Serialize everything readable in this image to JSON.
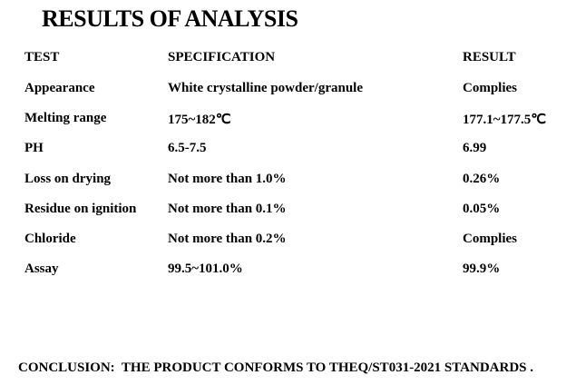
{
  "header": {
    "title": "RESULTS OF ANALYSIS"
  },
  "table": {
    "columns": [
      "TEST",
      "SPECIFICATION",
      "RESULT"
    ],
    "rows": [
      [
        "Appearance",
        "White crystalline powder/granule",
        "Complies"
      ],
      [
        "Melting range",
        "175~182℃",
        "177.1~177.5℃"
      ],
      [
        "PH",
        "6.5-7.5",
        "6.99"
      ],
      [
        "Loss on drying",
        "Not more than 1.0%",
        "0.26%"
      ],
      [
        "Residue on ignition",
        "Not more than 0.1%",
        "0.05%"
      ],
      [
        "Chloride",
        "Not more than 0.2%",
        "Complies"
      ],
      [
        "Assay",
        "99.5~101.0%",
        "99.9%"
      ]
    ]
  },
  "conclusion": "CONCLUSION:  THE PRODUCT CONFORMS TO THEQ/ST031-2021 STANDARDS ."
}
